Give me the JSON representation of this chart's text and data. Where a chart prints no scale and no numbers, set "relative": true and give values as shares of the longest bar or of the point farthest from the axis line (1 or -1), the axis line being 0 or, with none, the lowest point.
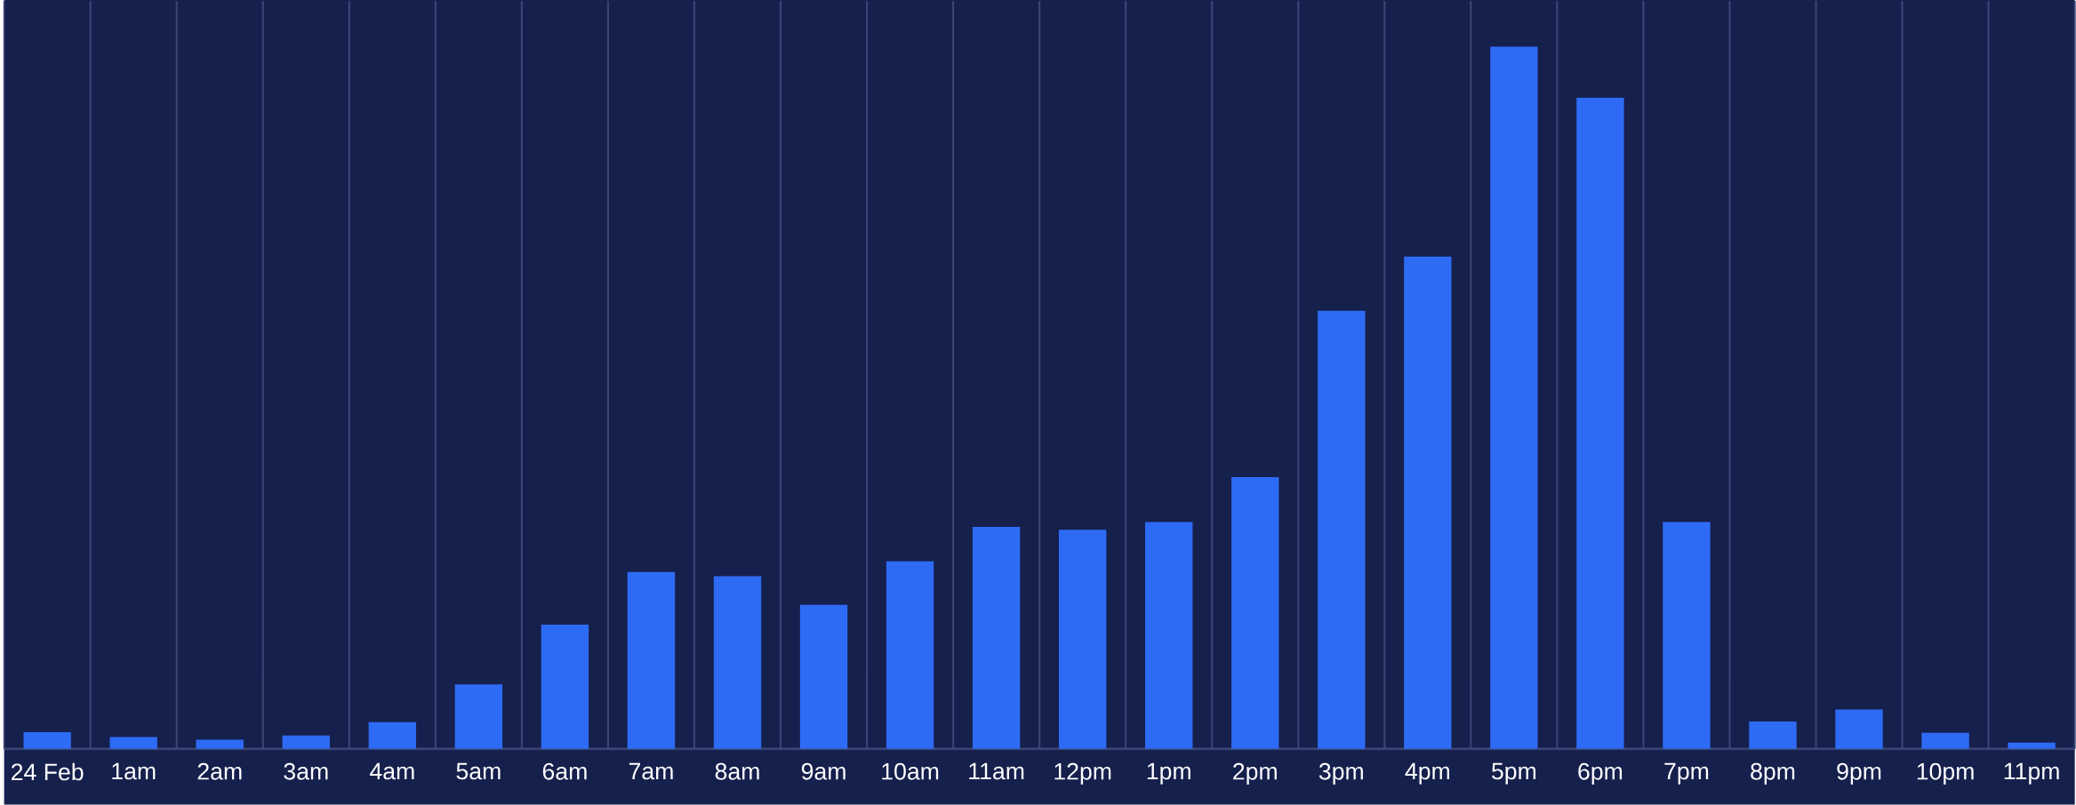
{
  "chart_data": {
    "type": "bar",
    "relative": true,
    "grid": "x",
    "color": "#2e6bf5",
    "categories": [
      "24 Feb",
      "1am",
      "2am",
      "3am",
      "4am",
      "5am",
      "6am",
      "7am",
      "8am",
      "9am",
      "10am",
      "11am",
      "12pm",
      "1pm",
      "2pm",
      "3pm",
      "4pm",
      "5pm",
      "6pm",
      "7pm",
      "8pm",
      "9pm",
      "10pm",
      "11pm"
    ],
    "values": [
      0.024,
      0.017,
      0.013,
      0.019,
      0.038,
      0.092,
      0.177,
      0.252,
      0.246,
      0.205,
      0.267,
      0.316,
      0.312,
      0.323,
      0.387,
      0.624,
      0.701,
      1,
      0.927,
      0.323,
      0.039,
      0.056,
      0.023,
      0.009
    ]
  }
}
